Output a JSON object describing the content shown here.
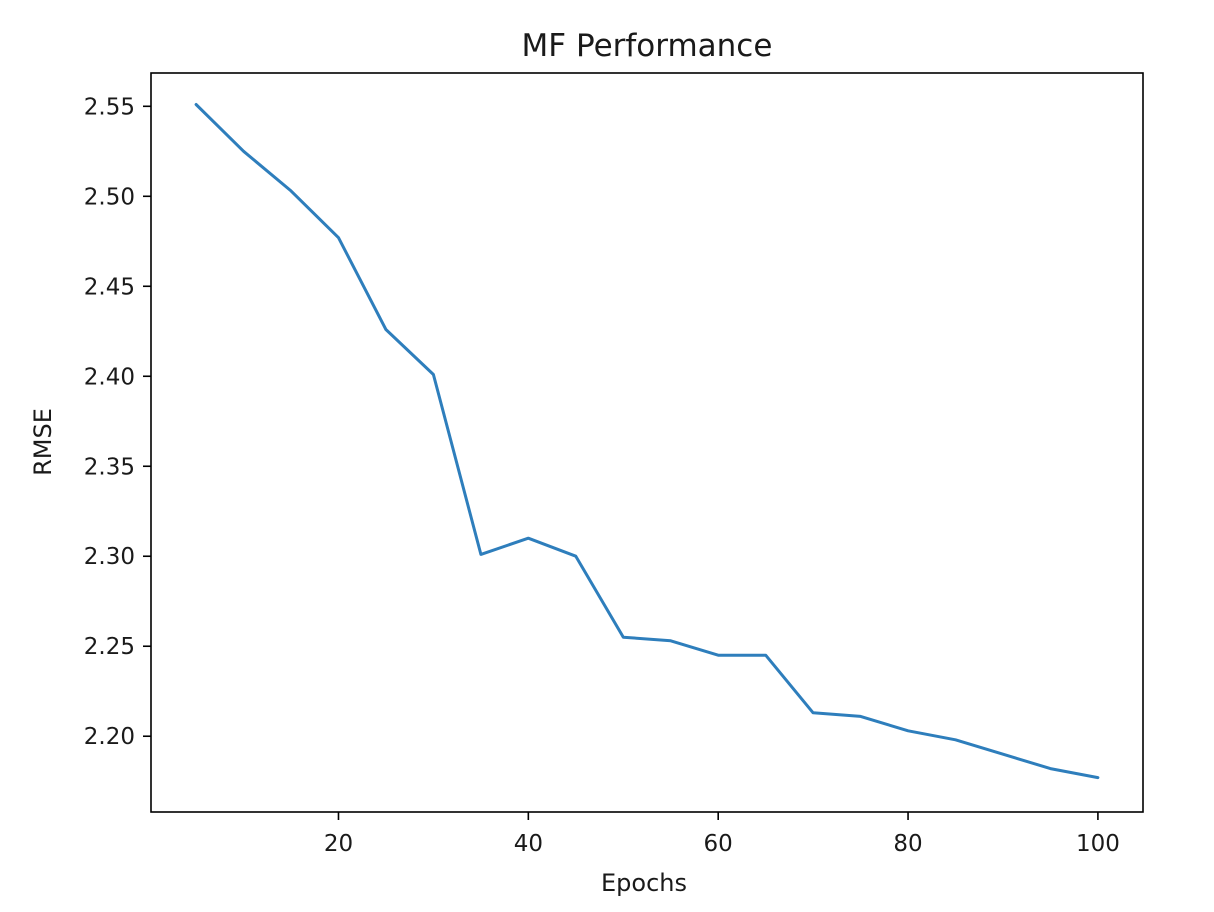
{
  "chart_data": {
    "type": "line",
    "title": "MF Performance",
    "xlabel": "Epochs",
    "ylabel": "RMSE",
    "xlim": [
      0.25,
      104.75
    ],
    "ylim": [
      2.1579,
      2.5685
    ],
    "xticks": [
      {
        "value": 20,
        "label": "20"
      },
      {
        "value": 40,
        "label": "40"
      },
      {
        "value": 60,
        "label": "60"
      },
      {
        "value": 80,
        "label": "80"
      },
      {
        "value": 100,
        "label": "100"
      }
    ],
    "yticks": [
      {
        "value": 2.2,
        "label": "2.20"
      },
      {
        "value": 2.25,
        "label": "2.25"
      },
      {
        "value": 2.3,
        "label": "2.30"
      },
      {
        "value": 2.35,
        "label": "2.35"
      },
      {
        "value": 2.4,
        "label": "2.40"
      },
      {
        "value": 2.45,
        "label": "2.45"
      },
      {
        "value": 2.5,
        "label": "2.50"
      },
      {
        "value": 2.55,
        "label": "2.55"
      }
    ],
    "grid": false,
    "series": [
      {
        "color": "#2e7ebc",
        "x": [
          5,
          10,
          15,
          20,
          25,
          30,
          35,
          40,
          45,
          50,
          55,
          60,
          65,
          70,
          75,
          80,
          85,
          90,
          95,
          100
        ],
        "y": [
          2.551,
          2.525,
          2.503,
          2.477,
          2.426,
          2.401,
          2.301,
          2.31,
          2.3,
          2.255,
          2.253,
          2.245,
          2.245,
          2.213,
          2.211,
          2.203,
          2.198,
          2.19,
          2.182,
          2.177
        ]
      }
    ]
  }
}
